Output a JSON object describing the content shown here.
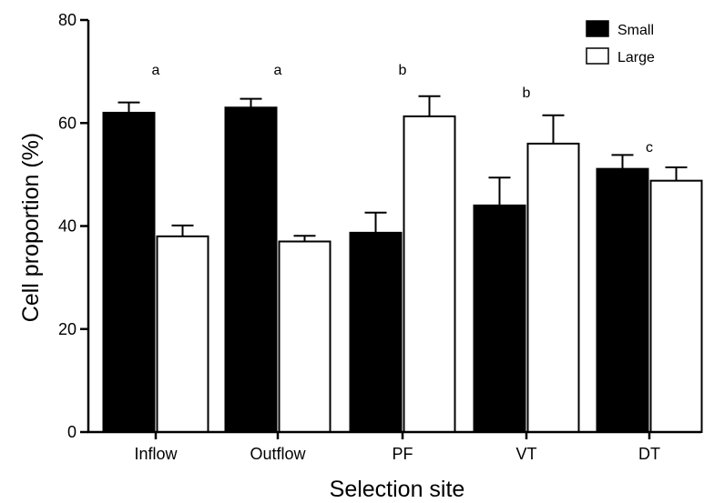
{
  "chart_data": {
    "type": "bar",
    "title": "",
    "xlabel": "Selection site",
    "ylabel": "Cell proportion (%)",
    "ylim": [
      0,
      80
    ],
    "yticks": [
      0,
      20,
      40,
      60,
      80
    ],
    "grid": false,
    "legend_position": "top-right",
    "categories": [
      "Inflow",
      "Outflow",
      "PF",
      "VT",
      "DT"
    ],
    "series": [
      {
        "name": "Small",
        "color": "#000000",
        "values": [
          62,
          63,
          38.7,
          44,
          51.1
        ],
        "errors": [
          2,
          1.7,
          3.9,
          5.4,
          2.7
        ]
      },
      {
        "name": "Large",
        "color": "#ffffff",
        "values": [
          38,
          37,
          61.3,
          56,
          48.8
        ],
        "errors": [
          2.1,
          1.1,
          3.9,
          5.5,
          2.6
        ]
      }
    ],
    "annotations": [
      "a",
      "a",
      "b",
      "b",
      "c"
    ]
  }
}
